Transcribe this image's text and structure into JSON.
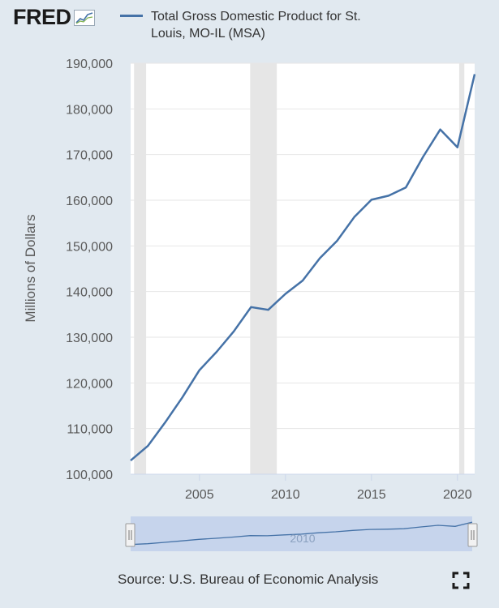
{
  "header": {
    "logo_text": "FRED",
    "legend_label": "Total Gross Domestic Product for St. Louis, MO-IL (MSA)"
  },
  "colors": {
    "background": "#e1e9f0",
    "plot_background": "#ffffff",
    "series_line": "#4572a7",
    "recession_shade": "#e6e6e6",
    "navigator_fill": "#c6d4ec"
  },
  "chart_data": {
    "type": "line",
    "title": "",
    "xlabel": "",
    "ylabel": "Millions of Dollars",
    "xlim": [
      2001,
      2021
    ],
    "ylim": [
      100000,
      190000
    ],
    "x_ticks": [
      2005,
      2010,
      2015,
      2020
    ],
    "y_ticks": [
      100000,
      110000,
      120000,
      130000,
      140000,
      150000,
      160000,
      170000,
      180000,
      190000
    ],
    "y_tick_labels": [
      "100,000",
      "110,000",
      "120,000",
      "130,000",
      "140,000",
      "150,000",
      "160,000",
      "170,000",
      "180,000",
      "190,000"
    ],
    "grid": "horizontal",
    "recessions": [
      [
        2001.2,
        2001.9
      ],
      [
        2007.95,
        2009.5
      ],
      [
        2020.1,
        2020.4
      ]
    ],
    "series": [
      {
        "name": "Total Gross Domestic Product for St. Louis, MO-IL (MSA)",
        "x": [
          2001,
          2002,
          2003,
          2004,
          2005,
          2006,
          2007,
          2008,
          2009,
          2010,
          2011,
          2012,
          2013,
          2014,
          2015,
          2016,
          2017,
          2018,
          2019,
          2020,
          2021
        ],
        "values": [
          103000,
          106200,
          111300,
          116800,
          122800,
          126800,
          131300,
          136600,
          136000,
          139500,
          142400,
          147300,
          151100,
          156300,
          160100,
          161000,
          162800,
          169500,
          175500,
          171600,
          187600
        ]
      }
    ]
  },
  "navigator": {
    "label": "2010"
  },
  "footer": {
    "source": "Source: U.S. Bureau of Economic Analysis"
  }
}
